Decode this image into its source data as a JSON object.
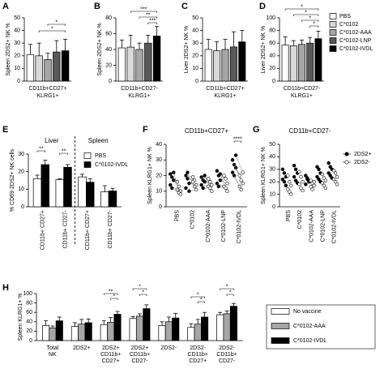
{
  "chart_data": [
    {
      "panel": "A",
      "type": "bar",
      "ylabel": "Spleen 2DS2+ NK %",
      "xlabel": [
        "CD11b+CD27+",
        "KLRG1+"
      ],
      "values": [
        21,
        20,
        17,
        23,
        24
      ],
      "errors": [
        8,
        10,
        5,
        9,
        9
      ],
      "colors": [
        "#ffffff",
        "#d9d9d9",
        "#a6a6a6",
        "#595959",
        "#000000"
      ],
      "ylim": [
        0,
        50
      ],
      "yticks": [
        0,
        10,
        20,
        30,
        40,
        50
      ],
      "annotations": [
        "*",
        "*"
      ]
    },
    {
      "panel": "B",
      "type": "bar",
      "ylabel": "Spleen 2DS2+ NK %",
      "xlabel": [
        "CD11b+CD27-",
        "KLRG1+"
      ],
      "values": [
        42,
        43,
        40,
        48,
        57
      ],
      "errors": [
        10,
        15,
        8,
        10,
        12
      ],
      "colors": [
        "#ffffff",
        "#d9d9d9",
        "#a6a6a6",
        "#595959",
        "#000000"
      ],
      "ylim": [
        0,
        80
      ],
      "yticks": [
        0,
        20,
        40,
        60,
        80
      ],
      "annotations": [
        "***",
        "**",
        "***"
      ]
    },
    {
      "panel": "C",
      "type": "bar",
      "ylabel": "Liver 2DS2+ NK %",
      "xlabel": [
        "CD11b+CD27+",
        "KLRG1+"
      ],
      "values": [
        25,
        24,
        25,
        27,
        31
      ],
      "errors": [
        8,
        7,
        8,
        12,
        9
      ],
      "colors": [
        "#ffffff",
        "#d9d9d9",
        "#a6a6a6",
        "#595959",
        "#000000"
      ],
      "ylim": [
        0,
        50
      ],
      "yticks": [
        0,
        10,
        20,
        30,
        40,
        50
      ],
      "annotations": []
    },
    {
      "panel": "D",
      "type": "bar",
      "ylabel": "Liver 2DS2+ NK %",
      "xlabel": [
        "CD11b+CD27-",
        "KLRG1+"
      ],
      "values": [
        57,
        56,
        58,
        60,
        67
      ],
      "errors": [
        13,
        8,
        7,
        9,
        12
      ],
      "colors": [
        "#ffffff",
        "#d9d9d9",
        "#a6a6a6",
        "#595959",
        "#000000"
      ],
      "ylim": [
        0,
        100
      ],
      "yticks": [
        0,
        20,
        40,
        60,
        80,
        100
      ],
      "annotations": [
        "*",
        "*",
        "*",
        "*"
      ],
      "legend": [
        "PBS",
        "C*0102",
        "C*0102-AAA",
        "C*0102-LNP",
        "C*0102-IVDL"
      ]
    },
    {
      "panel": "E",
      "type": "grouped_bar",
      "ylabel": "% CD69 2DS2+ NK cells",
      "group_labels": [
        "Liver",
        "Spleen"
      ],
      "categories": [
        "CD11b+ CD27+",
        "CD11b+ CD27-",
        "CD11b+ CD27+",
        "CD11b+ CD27-"
      ],
      "series": [
        {
          "name": "PBS",
          "color": "#ffffff",
          "values": [
            16,
            15.5,
            17,
            8.5
          ],
          "errors": [
            2,
            0.5,
            1.5,
            3.5
          ]
        },
        {
          "name": "C*0102-IVDL",
          "color": "#000000",
          "values": [
            24,
            22.5,
            14,
            9
          ],
          "errors": [
            2.5,
            1.5,
            2,
            1.5
          ]
        }
      ],
      "ylim": [
        0,
        30
      ],
      "yticks": [
        0,
        10,
        20,
        30
      ],
      "annotations": [
        "**",
        "**"
      ]
    },
    {
      "panel": "F",
      "type": "dot",
      "title": "CD11b+CD27+",
      "ylabel": "Spleen KLRG1+ NK %",
      "categories": [
        "PBS",
        "C*0102",
        "C*0102-AAA",
        "C*0102-LNP",
        "C*0102-IVDL"
      ],
      "series": [
        {
          "color": "#000000",
          "values": [
            [
              21,
              19,
              17,
              14,
              12,
              22
            ],
            [
              20,
              18,
              15,
              12,
              22,
              10
            ],
            [
              19,
              17,
              16,
              14,
              12,
              20
            ],
            [
              23,
              20,
              17,
              15,
              13,
              21
            ],
            [
              30,
              27,
              25,
              22,
              20,
              33
            ]
          ]
        },
        {
          "color": "#ffffff",
          "values": [
            [
              16,
              13,
              10,
              11,
              9,
              8
            ],
            [
              19,
              17,
              14,
              16,
              13,
              11
            ],
            [
              18,
              16,
              14,
              13,
              12,
              10
            ],
            [
              20,
              18,
              15,
              13,
              12,
              10
            ],
            [
              20,
              17,
              15,
              13,
              11,
              22
            ]
          ]
        }
      ],
      "ylim": [
        0,
        40
      ],
      "yticks": [
        0,
        10,
        20,
        30,
        40
      ],
      "annotations": [
        "****"
      ]
    },
    {
      "panel": "G",
      "type": "dot",
      "title": "CD11b+CD27-",
      "ylabel": "Spleen KLRG1+ NK %",
      "categories": [
        "PBS",
        "C*0102",
        "C*0102-AAA",
        "C*0102-LNP",
        "C*0102-IVDL"
      ],
      "series": [
        {
          "name": "2DS2+",
          "color": "#000000",
          "values": [
            [
              30,
              27,
              24,
              22,
              20,
              17
            ],
            [
              33,
              30,
              27,
              24,
              21,
              19
            ],
            [
              25,
              22,
              20,
              18,
              23,
              21
            ],
            [
              32,
              30,
              27,
              24,
              22,
              20
            ],
            [
              35,
              32,
              30,
              27,
              25,
              23
            ]
          ]
        },
        {
          "name": "2DS2-",
          "color": "#ffffff",
          "values": [
            [
              25,
              20,
              17,
              14,
              12,
              10
            ],
            [
              28,
              24,
              20,
              18,
              15,
              13
            ],
            [
              21,
              19,
              17,
              16,
              14,
              20
            ],
            [
              26,
              23,
              21,
              19,
              17,
              15
            ],
            [
              29,
              27,
              24,
              22,
              20,
              18
            ]
          ]
        }
      ],
      "ylim": [
        0,
        50
      ],
      "yticks": [
        0,
        10,
        20,
        30,
        40,
        50
      ],
      "annotations": []
    },
    {
      "panel": "H",
      "type": "grouped_bar",
      "ylabel": "Spleen KLRG1+ %",
      "categories": [
        [
          "Total",
          "NK"
        ],
        [
          "2DS2+"
        ],
        [
          "2DS2+",
          "CD11b+",
          "CD27+"
        ],
        [
          "2DS2+",
          "CD11b+",
          "CD27-"
        ],
        [
          "2DS2-"
        ],
        [
          "2DS2-",
          "CD11b+",
          "CD27+"
        ],
        [
          "2DS2-",
          "CD11b+",
          "CD27-"
        ]
      ],
      "series": [
        {
          "name": "No vaccine",
          "color": "#ffffff",
          "values": [
            32,
            30,
            34,
            47,
            32,
            28,
            55
          ],
          "errors": [
            10,
            8,
            8,
            4,
            8,
            8,
            5
          ]
        },
        {
          "name": "C*0102-AAA",
          "color": "#a6a6a6",
          "values": [
            27,
            35,
            39,
            52,
            40,
            35,
            57
          ],
          "errors": [
            4,
            10,
            10,
            5,
            10,
            10,
            6
          ]
        },
        {
          "name": "C*0102-IVDL",
          "color": "#000000",
          "values": [
            42,
            38,
            56,
            68,
            48,
            50,
            73
          ],
          "errors": [
            8,
            8,
            6,
            8,
            10,
            10,
            6
          ]
        }
      ],
      "ylim": [
        0,
        100
      ],
      "yticks": [
        0,
        20,
        40,
        60,
        80,
        100
      ],
      "annotations": [
        "**",
        "*",
        "*",
        "*",
        "*",
        "*",
        "*",
        "*"
      ]
    }
  ]
}
